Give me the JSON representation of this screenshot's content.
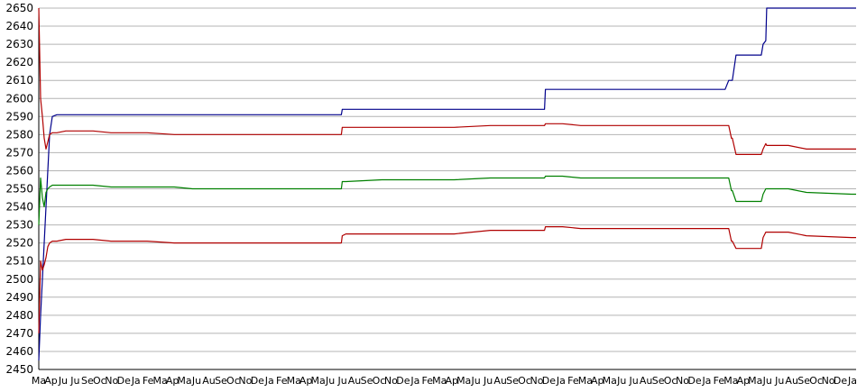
{
  "chart_data": {
    "type": "line",
    "title": "",
    "xlabel": "",
    "ylabel": "",
    "ylim": [
      2450,
      2650
    ],
    "yticks": [
      2450,
      2460,
      2470,
      2480,
      2490,
      2500,
      2510,
      2520,
      2530,
      2540,
      2550,
      2560,
      2570,
      2580,
      2590,
      2600,
      2610,
      2620,
      2630,
      2640,
      2650
    ],
    "grid": "horizontal",
    "legend": "none",
    "x_tick_labels": [
      "Ma",
      "Ap",
      "Ju",
      "Ju",
      "Se",
      "Oc",
      "No",
      "De",
      "Ja",
      "Fe",
      "Ma",
      "Ap",
      "Ma",
      "Ju",
      "Au",
      "Se",
      "Oc",
      "No",
      "De",
      "Ja",
      "Fe",
      "Ma",
      "Ap",
      "Ma",
      "Ju",
      "Ju",
      "Au",
      "Se",
      "Oc",
      "No",
      "De",
      "Ja",
      "Fe",
      "Ma",
      "Ap",
      "Ma",
      "Ju",
      "Ju",
      "Au",
      "Se",
      "Oc",
      "No",
      "De",
      "Ja",
      "Fe",
      "Ma",
      "Ap",
      "Ma",
      "Ju",
      "Ju",
      "Au",
      "Se",
      "Oc",
      "No",
      "De",
      "Ja",
      "Fe",
      "Ma",
      "Ap",
      "Ma",
      "Ju",
      "Ju",
      "Au",
      "Se",
      "Oc",
      "No",
      "De",
      "Ja"
    ],
    "x": [
      0,
      2,
      4,
      6,
      8,
      10,
      12,
      15,
      20,
      30,
      40,
      60,
      80,
      100,
      120,
      150,
      170,
      180,
      200,
      250,
      300,
      335,
      336,
      340,
      380,
      400,
      450,
      460,
      500,
      540,
      560,
      561,
      580,
      600,
      650,
      700,
      740,
      760,
      764,
      767,
      768,
      772,
      800,
      802,
      805,
      806,
      810,
      830,
      850,
      900,
      905
    ],
    "series": [
      {
        "color": "#00008b",
        "values": [
          2455,
          2480,
          2500,
          2520,
          2540,
          2560,
          2580,
          2590,
          2591,
          2591,
          2591,
          2591,
          2591,
          2591,
          2591,
          2591,
          2591,
          2591,
          2591,
          2591,
          2591,
          2591,
          2594,
          2594,
          2594,
          2594,
          2594,
          2594,
          2594,
          2594,
          2594,
          2605,
          2605,
          2605,
          2605,
          2605,
          2605,
          2605,
          2610,
          2610,
          2610,
          2624,
          2624,
          2630,
          2632,
          2650,
          2650,
          2650,
          2650,
          2650,
          2650
        ]
      },
      {
        "color": "#b00000",
        "values": [
          2650,
          2600,
          2590,
          2578,
          2572,
          2576,
          2580,
          2581,
          2581,
          2582,
          2582,
          2582,
          2581,
          2581,
          2581,
          2580,
          2580,
          2580,
          2580,
          2580,
          2580,
          2580,
          2584,
          2584,
          2584,
          2584,
          2584,
          2584,
          2585,
          2585,
          2585,
          2586,
          2586,
          2585,
          2585,
          2585,
          2585,
          2585,
          2585,
          2578,
          2578,
          2569,
          2569,
          2572,
          2575,
          2574,
          2574,
          2574,
          2572,
          2572,
          2572
        ]
      },
      {
        "color": "#008000",
        "values": [
          2530,
          2556,
          2545,
          2540,
          2548,
          2550,
          2551,
          2552,
          2552,
          2552,
          2552,
          2552,
          2551,
          2551,
          2551,
          2551,
          2550,
          2550,
          2550,
          2550,
          2550,
          2550,
          2554,
          2554,
          2555,
          2555,
          2555,
          2555,
          2556,
          2556,
          2556,
          2557,
          2557,
          2556,
          2556,
          2556,
          2556,
          2556,
          2556,
          2549,
          2549,
          2543,
          2543,
          2547,
          2550,
          2550,
          2550,
          2550,
          2548,
          2547,
          2547
        ]
      },
      {
        "color": "#b00000",
        "values": [
          2470,
          2510,
          2505,
          2508,
          2512,
          2518,
          2520,
          2521,
          2521,
          2522,
          2522,
          2522,
          2521,
          2521,
          2521,
          2520,
          2520,
          2520,
          2520,
          2520,
          2520,
          2520,
          2524,
          2525,
          2525,
          2525,
          2525,
          2525,
          2527,
          2527,
          2527,
          2529,
          2529,
          2528,
          2528,
          2528,
          2528,
          2528,
          2528,
          2521,
          2521,
          2517,
          2517,
          2523,
          2526,
          2526,
          2526,
          2526,
          2524,
          2523,
          2523
        ]
      }
    ]
  }
}
